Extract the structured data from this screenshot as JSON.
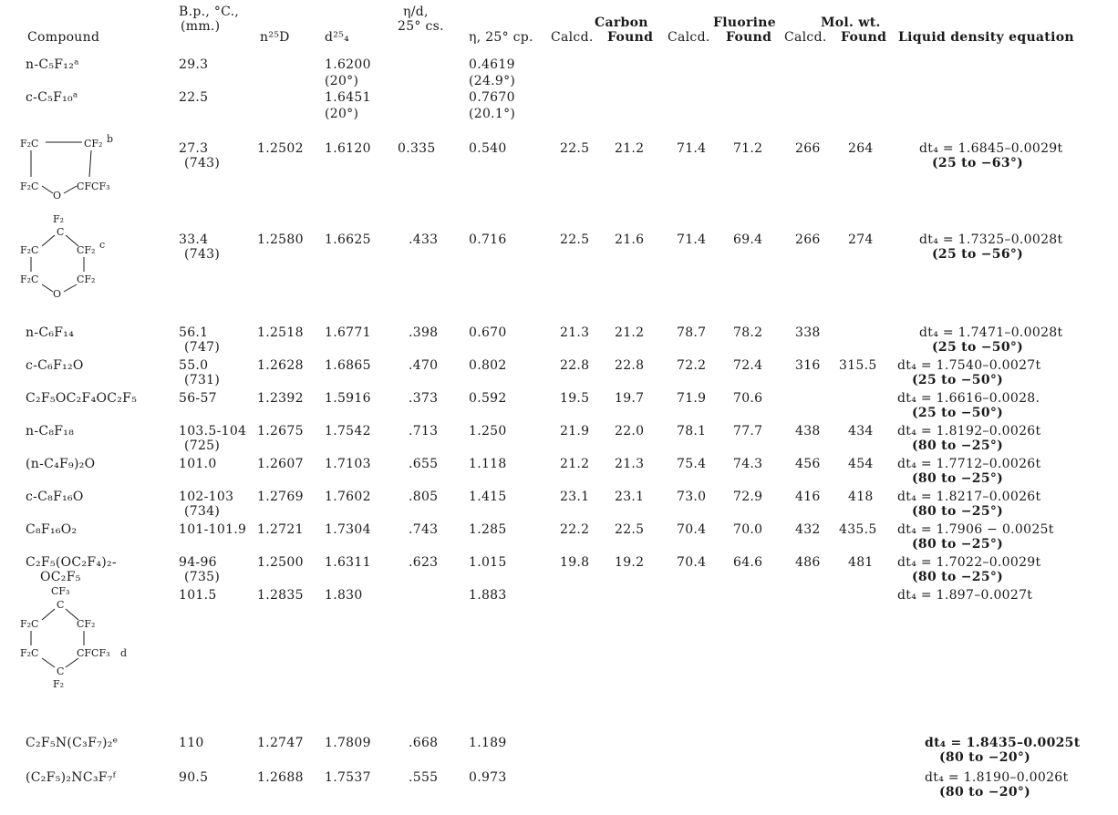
{
  "headers": {
    "compound": "Compound",
    "bp": "B.p., °C.,",
    "bp_sub": "(mm.)",
    "nd": "n²⁵D",
    "d": "d²⁵₄",
    "eta_d": "η/d,",
    "eta_d_sub": "25° cs.",
    "eta": "η, 25° cp.",
    "carbon": "Carbon",
    "fluorine": "Fluorine",
    "molwt": "Mol. wt.",
    "calcd": "Calcd.",
    "found": "Found",
    "equation": "Liquid density equation"
  },
  "rows": [
    {
      "compound": "n-C₅F₁₂ᵃ",
      "bp": "29.3",
      "nd": "",
      "d": "1.6200",
      "d_note": "(20°)",
      "eta_d": "",
      "eta": "0.4619",
      "eta_note": "(24.9°)",
      "c_calc": "",
      "c_found": "",
      "f_calc": "",
      "f_found": "",
      "mw_calc": "",
      "mw_found": "",
      "eq": "",
      "eq_note": ""
    },
    {
      "compound": "c-C₅F₁₀ᵃ",
      "bp": "22.5",
      "nd": "",
      "d": "1.6451",
      "d_note": "(20°)",
      "eta_d": "",
      "eta": "0.7670",
      "eta_note": "(20.1°)",
      "c_calc": "",
      "c_found": "",
      "f_calc": "",
      "f_found": "",
      "mw_calc": "",
      "mw_found": "",
      "eq": "",
      "eq_note": ""
    },
    {
      "compound": "",
      "bp": "27.3",
      "bp_note": "(743)",
      "nd": "1.2502",
      "d": "1.6120",
      "eta_d": "0.335",
      "eta": "0.540",
      "c_calc": "22.5",
      "c_found": "21.2",
      "f_calc": "71.4",
      "f_found": "71.2",
      "mw_calc": "266",
      "mw_found": "264",
      "eq": "dt₄ = 1.6845–0.0029t",
      "eq_note": "(25 to −63°)"
    },
    {
      "compound": "",
      "bp": "33.4",
      "bp_note": "(743)",
      "nd": "1.2580",
      "d": "1.6625",
      "eta_d": ".433",
      "eta": "0.716",
      "c_calc": "22.5",
      "c_found": "21.6",
      "f_calc": "71.4",
      "f_found": "69.4",
      "mw_calc": "266",
      "mw_found": "274",
      "eq": "dt₄ = 1.7325–0.0028t",
      "eq_note": "(25 to −56°)"
    },
    {
      "compound": "n-C₆F₁₄",
      "bp": "56.1",
      "bp_note": "(747)",
      "nd": "1.2518",
      "d": "1.6771",
      "eta_d": ".398",
      "eta": "0.670",
      "c_calc": "21.3",
      "c_found": "21.2",
      "f_calc": "78.7",
      "f_found": "78.2",
      "mw_calc": "338",
      "mw_found": "",
      "eq": "dt₄ = 1.7471–0.0028t",
      "eq_note": "(25 to −50°)"
    },
    {
      "compound": "c-C₆F₁₂O",
      "bp": "55.0",
      "bp_note": "(731)",
      "nd": "1.2628",
      "d": "1.6865",
      "eta_d": ".470",
      "eta": "0.802",
      "c_calc": "22.8",
      "c_found": "22.8",
      "f_calc": "72.2",
      "f_found": "72.4",
      "mw_calc": "316",
      "mw_found": "315.5",
      "eq": "dt₄ = 1.7540–0.0027t",
      "eq_note": "(25 to −50°)"
    },
    {
      "compound": "C₂F₅OC₂F₄OC₂F₅",
      "bp": "56-57",
      "bp_note": "",
      "nd": "1.2392",
      "d": "1.5916",
      "eta_d": ".373",
      "eta": "0.592",
      "c_calc": "19.5",
      "c_found": "19.7",
      "f_calc": "71.9",
      "f_found": "70.6",
      "mw_calc": "",
      "mw_found": "",
      "eq": "dt₄ = 1.6616–0.0028.",
      "eq_note": "(25 to −50°)"
    },
    {
      "compound": "n-C₈F₁₈",
      "bp": "103.5-104",
      "bp_note": "(725)",
      "nd": "1.2675",
      "d": "1.7542",
      "eta_d": ".713",
      "eta": "1.250",
      "c_calc": "21.9",
      "c_found": "22.0",
      "f_calc": "78.1",
      "f_found": "77.7",
      "mw_calc": "438",
      "mw_found": "434",
      "eq": "dt₄ = 1.8192–0.0026t",
      "eq_note": "(80 to −25°)"
    },
    {
      "compound": "(n-C₄F₉)₂O",
      "bp": "101.0",
      "bp_note": "",
      "nd": "1.2607",
      "d": "1.7103",
      "eta_d": ".655",
      "eta": "1.118",
      "c_calc": "21.2",
      "c_found": "21.3",
      "f_calc": "75.4",
      "f_found": "74.3",
      "mw_calc": "456",
      "mw_found": "454",
      "eq": "dt₄ = 1.7712–0.0026t",
      "eq_note": "(80 to −25°)"
    },
    {
      "compound": "c-C₈F₁₆O",
      "bp": "102-103",
      "bp_note": "(734)",
      "nd": "1.2769",
      "d": "1.7602",
      "eta_d": ".805",
      "eta": "1.415",
      "c_calc": "23.1",
      "c_found": "23.1",
      "f_calc": "73.0",
      "f_found": "72.9",
      "mw_calc": "416",
      "mw_found": "418",
      "eq": "dt₄ = 1.8217–0.0026t",
      "eq_note": "(80 to −25°)"
    },
    {
      "compound": "C₈F₁₆O₂",
      "bp": "101-101.9",
      "bp_note": "",
      "nd": "1.2721",
      "d": "1.7304",
      "eta_d": ".743",
      "eta": "1.285",
      "c_calc": "22.2",
      "c_found": "22.5",
      "f_calc": "70.4",
      "f_found": "70.0",
      "mw_calc": "432",
      "mw_found": "435.5",
      "eq": "dt₄ = 1.7906 − 0.0025t",
      "eq_note": "(80 to −25°)"
    },
    {
      "compound": "C₂F₅(OC₂F₄)₂-",
      "compound2": "OC₂F₅",
      "bp": "94-96",
      "bp_note": "(735)",
      "nd": "1.2500",
      "d": "1.6311",
      "eta_d": ".623",
      "eta": "1.015",
      "c_calc": "19.8",
      "c_found": "19.2",
      "f_calc": "70.4",
      "f_found": "64.6",
      "mw_calc": "486",
      "mw_found": "481",
      "eq": "dt₄ = 1.7022–0.0029t",
      "eq_note": "(80 to −25°)"
    },
    {
      "compound": "",
      "bp": "101.5",
      "bp_note": "",
      "nd": "1.2835",
      "d": "1.830",
      "eta_d": "",
      "eta": "1.883",
      "c_calc": "",
      "c_found": "",
      "f_calc": "",
      "f_found": "",
      "mw_calc": "",
      "mw_found": "",
      "eq": "dt₄ = 1.897–0.0027t",
      "eq_note": ""
    },
    {
      "compound": "C₂F₅N(C₃F₇)₂ᵉ",
      "bp": "110",
      "bp_note": "",
      "nd": "1.2747",
      "d": "1.7809",
      "eta_d": ".668",
      "eta": "1.189",
      "c_calc": "",
      "c_found": "",
      "f_calc": "",
      "f_found": "",
      "mw_calc": "",
      "mw_found": "",
      "eq": "dt₄ = 1.8435–0.0025t",
      "eq_note": "(80 to −20°)"
    },
    {
      "compound": "(C₂F₅)₂NC₃F₇ᶠ",
      "bp": "90.5",
      "bp_note": "",
      "nd": "1.2688",
      "d": "1.7537",
      "eta_d": ".555",
      "eta": "0.973",
      "c_calc": "",
      "c_found": "",
      "f_calc": "",
      "f_found": "",
      "mw_calc": "",
      "mw_found": "",
      "eq": "dt₄ = 1.8190–0.0026t",
      "eq_note": "(80 to −20°)"
    }
  ],
  "structures": {
    "s1": {
      "a": "F₂C",
      "b": "CF₂",
      "b_sup": "b",
      "c": "F₂C",
      "d": "CFCF₃",
      "o": "O"
    },
    "s2": {
      "top": "F₂",
      "c": "C",
      "l1": "F₂C",
      "r1": "CF₂",
      "r1_sup": "c",
      "l2": "F₂C",
      "r2": "CF₂",
      "o": "O"
    },
    "s3": {
      "top": "CF₃",
      "c": "C",
      "l1": "F₂C",
      "r1": "CF₂",
      "l2": "F₂C",
      "r2": "CFCF₃",
      "r2_sup": "d",
      "bc": "C",
      "bottom": "F₂"
    }
  }
}
